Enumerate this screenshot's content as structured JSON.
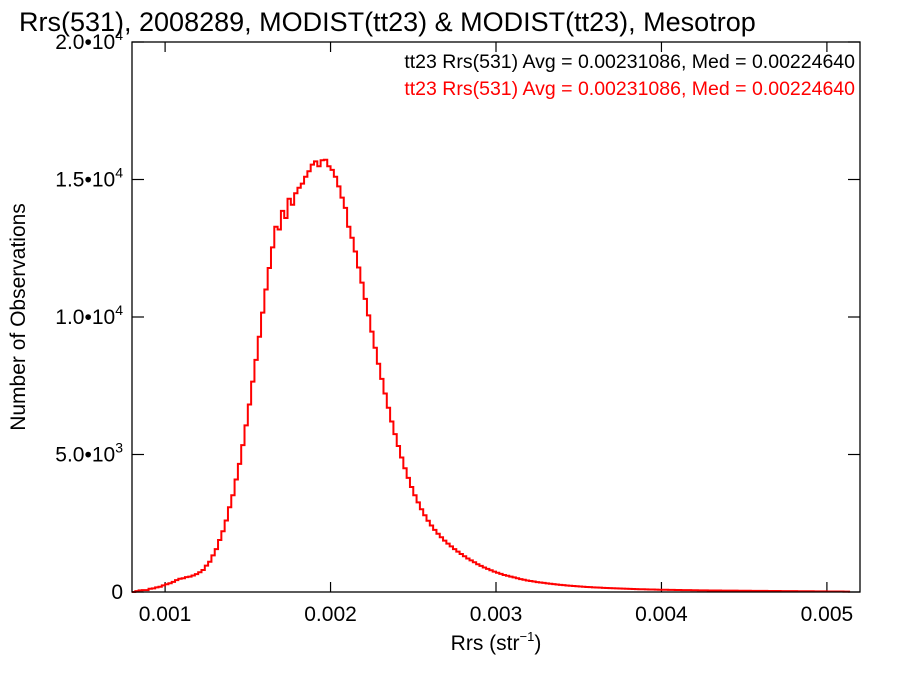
{
  "chart_data": {
    "type": "histogram-step",
    "title": "Rrs(531), 2008289, MODIST(tt23) & MODIST(tt23), Mesotrop",
    "xlabel_base": "Rrs (str",
    "xlabel_sup": "−1",
    "xlabel_close": ")",
    "ylabel": "Number of Observations",
    "xlim": [
      0.0008,
      0.0052
    ],
    "ylim": [
      0,
      20000
    ],
    "x_ticks": [
      {
        "value": 0.001,
        "label": "0.001"
      },
      {
        "value": 0.002,
        "label": "0.002"
      },
      {
        "value": 0.003,
        "label": "0.003"
      },
      {
        "value": 0.004,
        "label": "0.004"
      },
      {
        "value": 0.005,
        "label": "0.005"
      }
    ],
    "y_ticks": [
      {
        "value": 0,
        "mantissa": "0",
        "exp": ""
      },
      {
        "value": 5000,
        "mantissa": "5.0•10",
        "exp": "3"
      },
      {
        "value": 10000,
        "mantissa": "1.0•10",
        "exp": "4"
      },
      {
        "value": 15000,
        "mantissa": "1.5•10",
        "exp": "4"
      },
      {
        "value": 20000,
        "mantissa": "2.0•10",
        "exp": "4"
      }
    ],
    "legend": [
      {
        "text": "tt23 Rrs(531) Avg = 0.00231086, Med = 0.00224640",
        "color": "#000000"
      },
      {
        "text": "tt23 Rrs(531) Avg = 0.00231086, Med = 0.00224640",
        "color": "#ff0000"
      }
    ],
    "series_color": "#ff0000",
    "bin_width": 2e-05,
    "x_start": 0.0008,
    "values": [
      0,
      30,
      60,
      70,
      70,
      120,
      130,
      170,
      190,
      240,
      280,
      320,
      370,
      430,
      480,
      500,
      540,
      560,
      600,
      650,
      720,
      800,
      960,
      1100,
      1330,
      1560,
      1890,
      2210,
      2600,
      3080,
      3520,
      4090,
      4660,
      5340,
      6060,
      6820,
      7650,
      8440,
      9280,
      10160,
      11000,
      11780,
      12530,
      13280,
      13180,
      13860,
      13600,
      14300,
      14080,
      14500,
      14700,
      14850,
      15100,
      15300,
      15540,
      15660,
      15480,
      15700,
      15720,
      15480,
      15350,
      15100,
      14750,
      14340,
      13970,
      13280,
      12880,
      12380,
      11800,
      11250,
      10660,
      10060,
      9470,
      8880,
      8300,
      7750,
      7220,
      6700,
      6200,
      5740,
      5310,
      4890,
      4500,
      4150,
      3820,
      3520,
      3260,
      3010,
      2790,
      2590,
      2420,
      2260,
      2120,
      1990,
      1870,
      1760,
      1660,
      1560,
      1470,
      1380,
      1300,
      1220,
      1150,
      1080,
      1010,
      950,
      890,
      840,
      790,
      740,
      700,
      660,
      620,
      590,
      560,
      530,
      500,
      470,
      445,
      420,
      400,
      380,
      360,
      345,
      330,
      315,
      300,
      285,
      272,
      260,
      248,
      238,
      228,
      218,
      209,
      200,
      192,
      184,
      177,
      170,
      163,
      157,
      151,
      145,
      140,
      135,
      130,
      125,
      121,
      117,
      113,
      109,
      105,
      102,
      99,
      96,
      93,
      90,
      87,
      84,
      82,
      80,
      78,
      76,
      74,
      72,
      70,
      68,
      66,
      64,
      62,
      60,
      58,
      57,
      56,
      55,
      54,
      53,
      52,
      51,
      50,
      49,
      48,
      47,
      46,
      45,
      44,
      43,
      42,
      41,
      40,
      39,
      38,
      37,
      36,
      35,
      34,
      33,
      32,
      31,
      30,
      29,
      28,
      27,
      26,
      25,
      24,
      23,
      22,
      21,
      20,
      19,
      18,
      17,
      16,
      15,
      14
    ]
  }
}
